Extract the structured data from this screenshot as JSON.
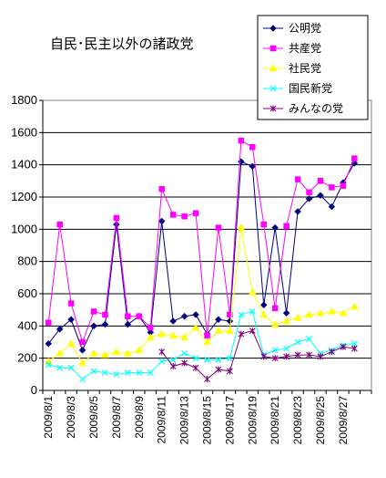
{
  "chart_data": {
    "type": "line",
    "title": "自民･民主以外の諸政党",
    "xlabel": "",
    "ylabel": "",
    "ylim": [
      0,
      1800
    ],
    "yticks": [
      0,
      200,
      400,
      600,
      800,
      1000,
      1200,
      1400,
      1600,
      1800
    ],
    "grid": "horizontal",
    "legend_position": "top-right",
    "x": [
      "2009/8/1",
      "2009/8/2",
      "2009/8/3",
      "2009/8/4",
      "2009/8/5",
      "2009/8/6",
      "2009/8/7",
      "2009/8/8",
      "2009/8/9",
      "2009/8/10",
      "2009/8/11",
      "2009/8/12",
      "2009/8/13",
      "2009/8/14",
      "2009/8/15",
      "2009/8/16",
      "2009/8/17",
      "2009/8/18",
      "2009/8/19",
      "2009/8/20",
      "2009/8/21",
      "2009/8/22",
      "2009/8/23",
      "2009/8/24",
      "2009/8/25",
      "2009/8/26",
      "2009/8/27",
      "2009/8/28",
      "2009/8/29"
    ],
    "x_tick_labels": [
      "2009/8/1",
      "2009/8/3",
      "2009/8/5",
      "2009/8/7",
      "2009/8/9",
      "2009/8/11",
      "2009/8/13",
      "2009/8/15",
      "2009/8/17",
      "2009/8/19",
      "2009/8/21",
      "2009/8/23",
      "2009/8/25",
      "2009/8/27"
    ],
    "series": [
      {
        "name": "公明党",
        "color": "#000080",
        "marker": "diamond",
        "values": [
          290,
          380,
          440,
          250,
          400,
          410,
          1030,
          410,
          460,
          360,
          1050,
          430,
          460,
          470,
          350,
          440,
          430,
          1420,
          1390,
          530,
          1010,
          480,
          1110,
          1190,
          1210,
          1140,
          1290,
          1410,
          null
        ]
      },
      {
        "name": "共産党",
        "color": "#ff00ff",
        "marker": "square",
        "values": [
          420,
          1030,
          540,
          300,
          490,
          470,
          1070,
          460,
          460,
          390,
          1250,
          1090,
          1080,
          1100,
          340,
          1010,
          470,
          1550,
          1510,
          1030,
          510,
          1020,
          1310,
          1230,
          1300,
          1260,
          1270,
          1440,
          null
        ]
      },
      {
        "name": "社民党",
        "color": "#ffff00",
        "marker": "triangle",
        "values": [
          180,
          230,
          290,
          170,
          230,
          220,
          240,
          230,
          250,
          330,
          350,
          340,
          330,
          390,
          300,
          370,
          370,
          1010,
          610,
          470,
          410,
          430,
          450,
          470,
          480,
          490,
          480,
          520,
          null
        ]
      },
      {
        "name": "国民新党",
        "color": "#00ffff",
        "marker": "x",
        "values": [
          160,
          140,
          140,
          70,
          120,
          110,
          100,
          110,
          110,
          110,
          180,
          190,
          230,
          200,
          190,
          190,
          200,
          470,
          490,
          220,
          250,
          260,
          300,
          320,
          230,
          250,
          280,
          290,
          null
        ]
      },
      {
        "name": "みんなの党",
        "color": "#800080",
        "marker": "star",
        "values": [
          null,
          null,
          null,
          null,
          null,
          null,
          null,
          null,
          null,
          null,
          240,
          150,
          170,
          140,
          70,
          130,
          120,
          350,
          370,
          210,
          200,
          210,
          220,
          220,
          210,
          240,
          270,
          260,
          null
        ]
      }
    ]
  }
}
